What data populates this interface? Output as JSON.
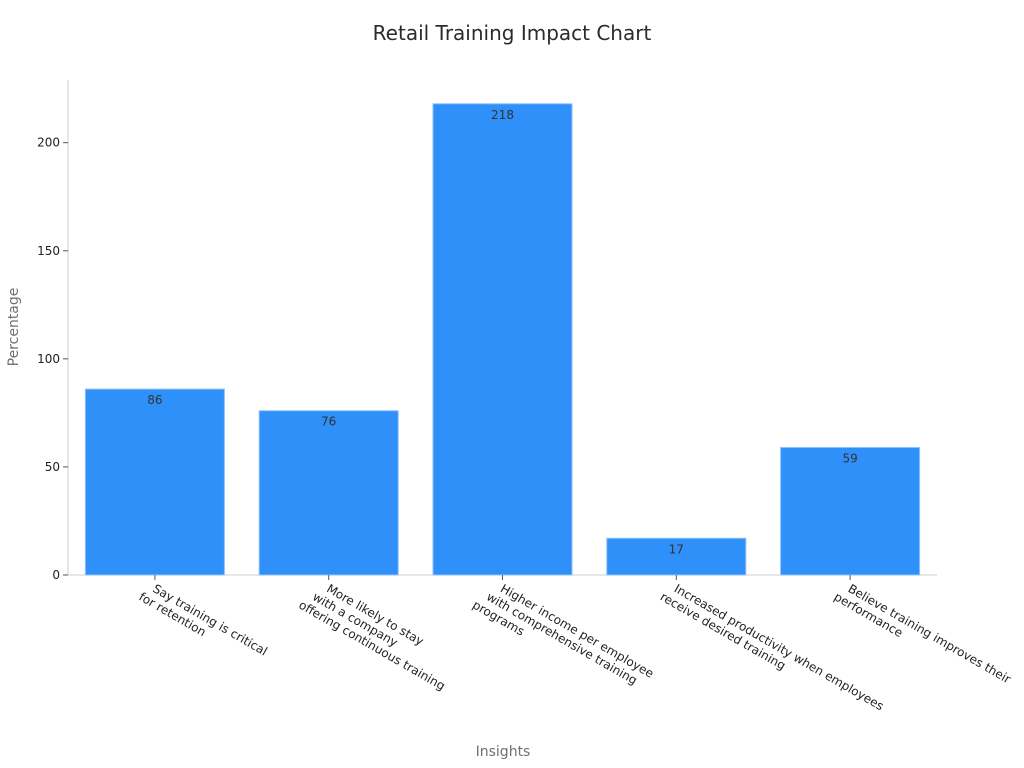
{
  "chart_data": {
    "type": "bar",
    "title": "Retail Training Impact Chart",
    "xlabel": "Insights",
    "ylabel": "Percentage",
    "categories": [
      [
        "Say training is critical",
        "for retention"
      ],
      [
        "More likely to stay",
        "with a company",
        "offering continuous training"
      ],
      [
        "Higher income per employee",
        "with comprehensive training",
        "programs"
      ],
      [
        "Increased productivity when employees",
        "receive desired training"
      ],
      [
        "Believe training improves their",
        "performance"
      ]
    ],
    "values": [
      86,
      76,
      218,
      17,
      59
    ],
    "ylim": [
      0,
      229
    ],
    "yticks": [
      0,
      50,
      100,
      150,
      200
    ],
    "grid": false,
    "legend": "none",
    "bar_color": "#2e90f8",
    "bar_edge_color": "#8ec2fb"
  }
}
